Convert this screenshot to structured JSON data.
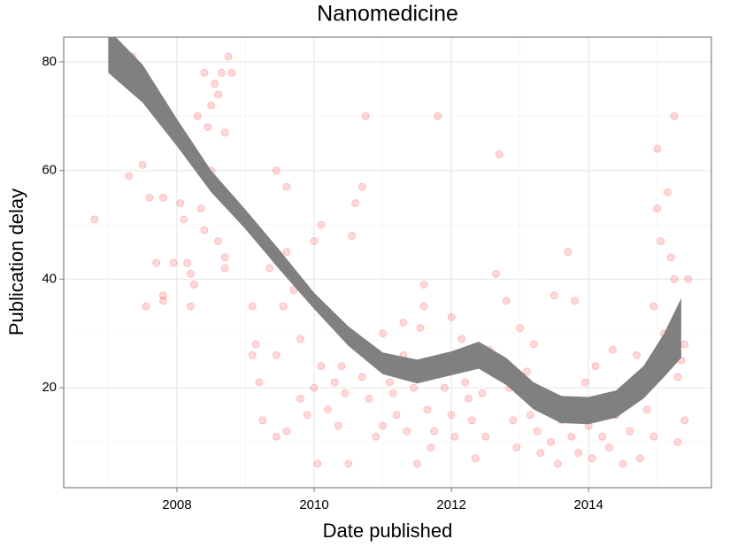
{
  "chart_data": {
    "type": "scatter",
    "title": "Nanomedicine",
    "x_label": "Date published",
    "y_label": "Publication delay",
    "xlim": [
      2006.35,
      2015.79
    ],
    "ylim": [
      1.6,
      84.56
    ],
    "xticks": [
      2008,
      2010,
      2012,
      2014
    ],
    "yticks": [
      20,
      40,
      60,
      80
    ],
    "x_minor_ticks": [
      2007,
      2009,
      2011,
      2013,
      2015
    ],
    "y_minor_ticks": [
      10,
      30,
      50,
      70
    ],
    "grid": true,
    "color": "#ff0000",
    "band_color": "#808080",
    "x": [
      2006.8,
      2007.35,
      2007.3,
      2007.5,
      2007.55,
      2007.6,
      2007.7,
      2007.8,
      2007.8,
      2007.8,
      2007.8,
      2007.95,
      2008.05,
      2008.05,
      2008.1,
      2008.15,
      2008.2,
      2008.25,
      2008.3,
      2008.35,
      2008.4,
      2008.45,
      2008.5,
      2008.55,
      2008.6,
      2008.65,
      2008.7,
      2008.7,
      2008.75,
      2008.8,
      2008.7,
      2008.5,
      2008.4,
      2008.2,
      2008.6,
      2009.1,
      2009.1,
      2009.15,
      2009.2,
      2009.25,
      2009.3,
      2009.35,
      2009.45,
      2009.45,
      2009.45,
      2009.55,
      2009.6,
      2009.6,
      2009.6,
      2009.7,
      2009.8,
      2009.8,
      2009.9,
      2010.0,
      2010.0,
      2010.05,
      2010.1,
      2010.1,
      2010.2,
      2010.3,
      2010.35,
      2010.4,
      2010.5,
      2010.55,
      2010.6,
      2010.7,
      2010.75,
      2010.7,
      2010.8,
      2010.9,
      2011.0,
      2011.0,
      2011.1,
      2011.2,
      2011.3,
      2011.3,
      2011.35,
      2011.45,
      2011.5,
      2011.55,
      2011.6,
      2011.6,
      2011.65,
      2011.7,
      2011.8,
      2011.85,
      2011.9,
      2012.0,
      2012.0,
      2012.05,
      2012.15,
      2012.2,
      2012.3,
      2012.35,
      2012.45,
      2012.5,
      2012.55,
      2012.65,
      2012.7,
      2012.8,
      2012.85,
      2012.9,
      2012.95,
      2013.0,
      2013.1,
      2013.2,
      2013.25,
      2013.3,
      2013.4,
      2013.45,
      2013.5,
      2013.55,
      2013.6,
      2013.7,
      2013.75,
      2013.8,
      2013.85,
      2013.95,
      2014.0,
      2014.05,
      2014.1,
      2014.2,
      2014.2,
      2014.3,
      2014.35,
      2014.4,
      2014.5,
      2014.55,
      2014.6,
      2014.7,
      2014.75,
      2014.85,
      2014.95,
      2015.0,
      2015.0,
      2015.05,
      2015.1,
      2015.15,
      2015.2,
      2015.25,
      2015.25,
      2015.3,
      2015.35,
      2015.4,
      2015.4,
      2015.45,
      2015.3,
      2014.95,
      2013.15,
      2012.25,
      2011.75,
      2011.15,
      2010.45
    ],
    "values": [
      51,
      81,
      59,
      61,
      35,
      55,
      43,
      72,
      55,
      37,
      36,
      43,
      67,
      54,
      51,
      43,
      41,
      39,
      70,
      53,
      78,
      68,
      72,
      76,
      74,
      78,
      44,
      42,
      81,
      78,
      67,
      60,
      49,
      35,
      47,
      35,
      26,
      28,
      21,
      14,
      46,
      42,
      60,
      26,
      11,
      35,
      57,
      45,
      12,
      38,
      29,
      18,
      15,
      47,
      20,
      6,
      50,
      24,
      16,
      21,
      13,
      24,
      6,
      48,
      54,
      57,
      70,
      22,
      18,
      11,
      30,
      13,
      21,
      15,
      32,
      26,
      12,
      20,
      6,
      31,
      35,
      39,
      16,
      9,
      70,
      24,
      20,
      33,
      15,
      11,
      29,
      21,
      14,
      7,
      19,
      11,
      27,
      41,
      63,
      36,
      20,
      14,
      9,
      31,
      23,
      28,
      12,
      8,
      19,
      10,
      37,
      6,
      14,
      45,
      11,
      36,
      8,
      21,
      13,
      7,
      24,
      17,
      11,
      9,
      27,
      15,
      6,
      19,
      12,
      26,
      7,
      16,
      11,
      64,
      53,
      47,
      30,
      56,
      44,
      70,
      40,
      22,
      25,
      14,
      28,
      40,
      10,
      35,
      15,
      18,
      12,
      19,
      19
    ],
    "smooth": {
      "x": [
        2007.0,
        2007.5,
        2008.0,
        2008.5,
        2009.0,
        2009.5,
        2010.0,
        2010.5,
        2011.0,
        2011.5,
        2012.0,
        2012.4,
        2012.8,
        2013.2,
        2013.6,
        2014.0,
        2014.4,
        2014.8,
        2015.1,
        2015.35
      ],
      "lower": [
        78,
        72.5,
        64.5,
        56,
        49.2,
        41.7,
        34.5,
        27.7,
        22.5,
        20.8,
        22.3,
        23.5,
        20.5,
        16,
        13.5,
        13.3,
        14.5,
        18,
        22,
        25.5
      ],
      "upper": [
        86,
        79.5,
        69.5,
        60,
        52.8,
        45.3,
        37.5,
        31.3,
        26.5,
        25.2,
        26.7,
        28.5,
        25.5,
        21,
        18.5,
        18.3,
        19.5,
        24,
        30,
        36.5
      ]
    }
  }
}
